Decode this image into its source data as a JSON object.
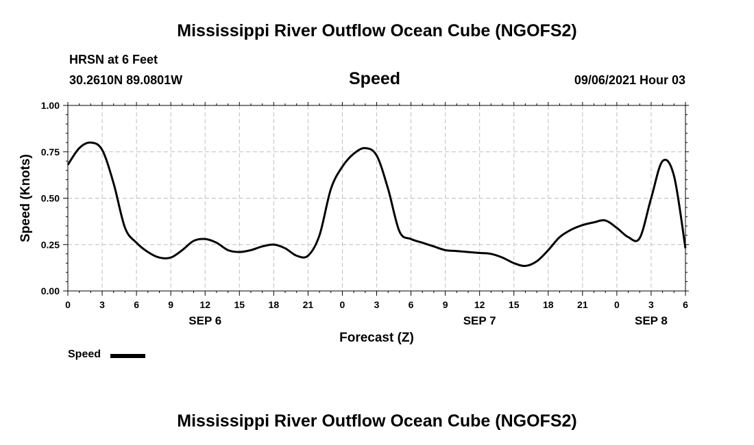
{
  "header": {
    "title_top": "Mississippi River Outflow Ocean Cube (NGOFS2)",
    "station": "HRSN at 6 Feet",
    "coords": "30.2610N  89.0801W",
    "variable": "Speed",
    "datetime": "09/06/2021 Hour 03",
    "title_bottom": "Mississippi River Outflow Ocean Cube (NGOFS2)"
  },
  "legend": {
    "label": "Speed",
    "color": "#000000"
  },
  "chart_data": {
    "type": "line",
    "xlabel": "Forecast (Z)",
    "ylabel": "Speed (Knots)",
    "xlim": [
      0,
      54
    ],
    "ylim": [
      0,
      1
    ],
    "grid": true,
    "legend_position": "bottom-left",
    "x_ticks": [
      0,
      3,
      6,
      9,
      12,
      15,
      18,
      21,
      24,
      27,
      30,
      33,
      36,
      39,
      42,
      45,
      48,
      51,
      54
    ],
    "x_tick_labels": [
      "0",
      "3",
      "6",
      "9",
      "12",
      "15",
      "18",
      "21",
      "0",
      "3",
      "6",
      "9",
      "12",
      "15",
      "18",
      "21",
      "0",
      "3",
      "6"
    ],
    "y_ticks": [
      0,
      0.25,
      0.5,
      0.75,
      1.0
    ],
    "y_tick_labels": [
      "0.00",
      "0.25",
      "0.50",
      "0.75",
      "1.00"
    ],
    "date_labels": [
      {
        "x": 12,
        "label": "SEP 6"
      },
      {
        "x": 36,
        "label": "SEP 7"
      },
      {
        "x": 51,
        "label": "SEP 8"
      }
    ],
    "series": [
      {
        "name": "Speed",
        "color": "#000000",
        "x": [
          0,
          1,
          2,
          3,
          4,
          5,
          6,
          7,
          8,
          9,
          10,
          11,
          12,
          13,
          14,
          15,
          16,
          17,
          18,
          19,
          20,
          21,
          22,
          23,
          24,
          25,
          26,
          27,
          28,
          29,
          30,
          31,
          32,
          33,
          34,
          35,
          36,
          37,
          38,
          39,
          40,
          41,
          42,
          43,
          44,
          45,
          46,
          47,
          48,
          49,
          50,
          51,
          52,
          53,
          54
        ],
        "values": [
          0.68,
          0.77,
          0.8,
          0.76,
          0.58,
          0.34,
          0.26,
          0.21,
          0.18,
          0.18,
          0.22,
          0.27,
          0.28,
          0.26,
          0.22,
          0.21,
          0.22,
          0.24,
          0.25,
          0.23,
          0.19,
          0.19,
          0.3,
          0.55,
          0.67,
          0.74,
          0.77,
          0.73,
          0.55,
          0.32,
          0.28,
          0.26,
          0.24,
          0.22,
          0.215,
          0.21,
          0.205,
          0.2,
          0.18,
          0.15,
          0.135,
          0.16,
          0.22,
          0.29,
          0.33,
          0.355,
          0.37,
          0.38,
          0.34,
          0.29,
          0.285,
          0.5,
          0.7,
          0.62,
          0.23
        ]
      }
    ]
  }
}
